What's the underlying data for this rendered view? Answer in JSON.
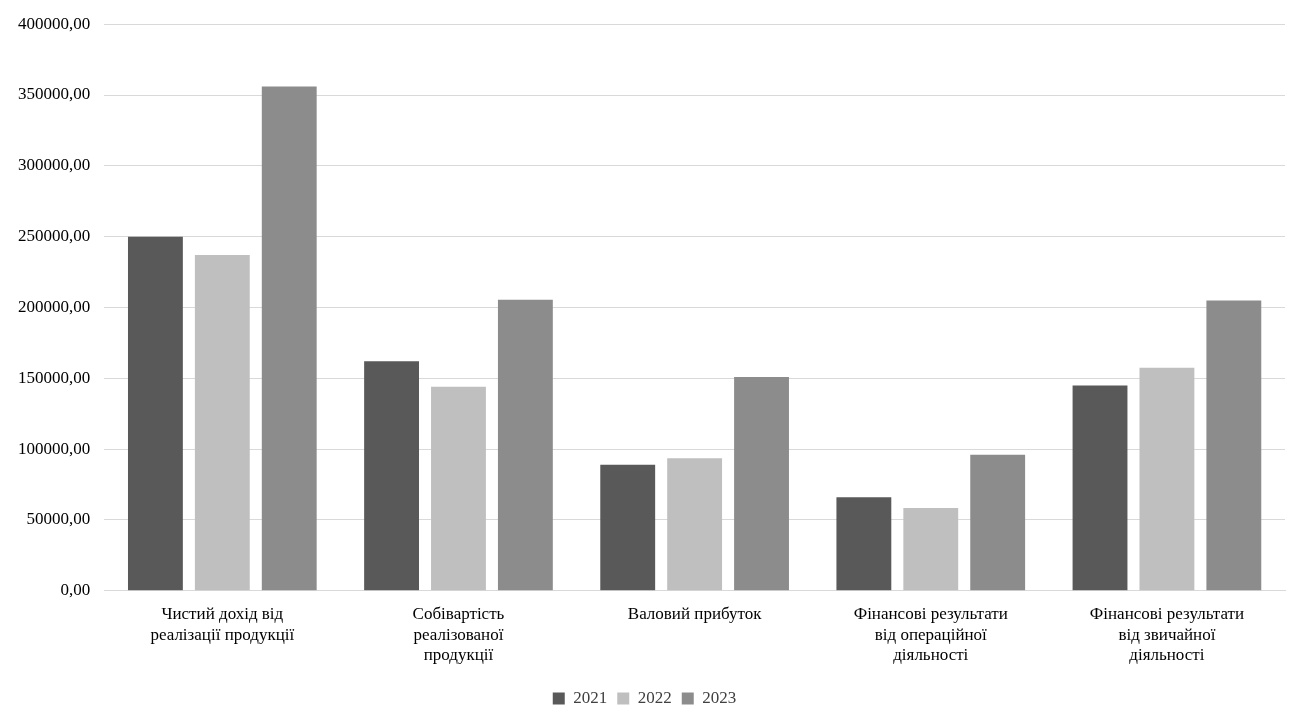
{
  "chart_data": {
    "type": "bar",
    "categories": [
      "Чистий дохід від\nреалізації продукції",
      "Собівартість\nреалізованої\nпродукції",
      "Валовий прибуток",
      "Фінансові результати\nвід операційної\nдіяльності",
      "Фінансові результати\nвід звичайної\nдіяльності"
    ],
    "series": [
      {
        "name": "2021",
        "color": "#595959",
        "values": [
          250000,
          162000,
          89000,
          66000,
          145000
        ]
      },
      {
        "name": "2022",
        "color": "#bfbfbf",
        "values": [
          237000,
          144000,
          93500,
          58500,
          157500
        ]
      },
      {
        "name": "2023",
        "color": "#8c8c8c",
        "values": [
          356000,
          205500,
          151000,
          96000,
          205000
        ]
      }
    ],
    "ylim": [
      0,
      400000
    ],
    "yticks": [
      {
        "value": 0,
        "label": "0,00"
      },
      {
        "value": 50000,
        "label": "50000,00"
      },
      {
        "value": 100000,
        "label": "100000,00"
      },
      {
        "value": 150000,
        "label": "150000,00"
      },
      {
        "value": 200000,
        "label": "200000,00"
      },
      {
        "value": 250000,
        "label": "250000,00"
      },
      {
        "value": 300000,
        "label": "300000,00"
      },
      {
        "value": 350000,
        "label": "350000,00"
      },
      {
        "value": 400000,
        "label": "400000,00"
      }
    ],
    "grid": "y",
    "legend": "bottom"
  }
}
